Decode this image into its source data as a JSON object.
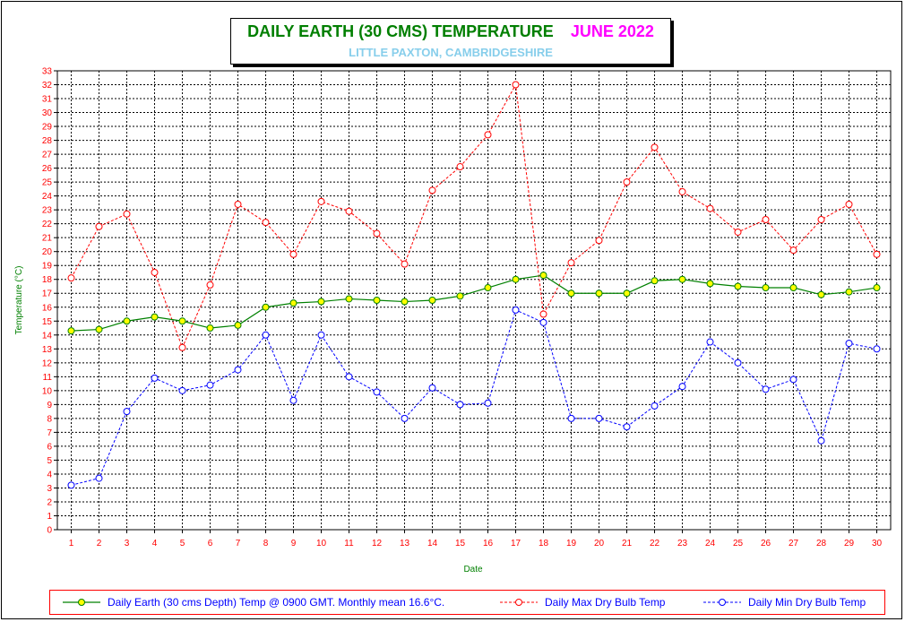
{
  "title": {
    "main": "DAILY EARTH (30 CMS) TEMPERATURE",
    "month": "JUNE 2022",
    "subtitle": "LITTLE PAXTON, CAMBRIDGESHIRE"
  },
  "colors": {
    "earth_line": "#008000",
    "earth_marker": "#ffff00",
    "max_line": "#ff0000",
    "min_line": "#0000ff",
    "grid": "#000000",
    "axis_text": "#ff0000",
    "axis_label": "#008000"
  },
  "legend": {
    "earth_label": "Daily Earth (30 cms Depth) Temp @ 0900 GMT. Monthly mean 16.6°C.",
    "max_label": "Daily Max Dry Bulb Temp",
    "min_label": "Daily Min Dry Bulb Temp"
  },
  "chart_data": {
    "type": "line",
    "xlabel": "Date",
    "ylabel": "Temperature (°C)",
    "ylim": [
      0,
      33
    ],
    "yticks": [
      0,
      1,
      2,
      3,
      4,
      5,
      6,
      7,
      8,
      9,
      10,
      11,
      12,
      13,
      14,
      15,
      16,
      17,
      18,
      19,
      20,
      21,
      22,
      23,
      24,
      25,
      26,
      27,
      28,
      29,
      30,
      31,
      32,
      33
    ],
    "x": [
      1,
      2,
      3,
      4,
      5,
      6,
      7,
      8,
      9,
      10,
      11,
      12,
      13,
      14,
      15,
      16,
      17,
      18,
      19,
      20,
      21,
      22,
      23,
      24,
      25,
      26,
      27,
      28,
      29,
      30
    ],
    "grid": true,
    "legend_position": "bottom",
    "series": [
      {
        "name": "Daily Earth (30 cms Depth) Temp @ 0900 GMT. Monthly mean 16.6°C.",
        "style": "solid",
        "values": [
          14.3,
          14.4,
          15.0,
          15.3,
          15.0,
          14.5,
          14.7,
          16.0,
          16.3,
          16.4,
          16.6,
          16.5,
          16.4,
          16.5,
          16.8,
          17.4,
          18.0,
          18.3,
          17.0,
          17.0,
          17.0,
          17.9,
          18.0,
          17.7,
          17.5,
          17.4,
          17.4,
          16.9,
          17.1,
          17.4
        ]
      },
      {
        "name": "Daily Max Dry Bulb Temp",
        "style": "dashed",
        "values": [
          18.1,
          21.8,
          22.7,
          18.5,
          13.1,
          17.6,
          23.4,
          22.1,
          19.8,
          23.6,
          22.9,
          21.3,
          19.1,
          24.4,
          26.1,
          28.4,
          32.0,
          15.5,
          19.2,
          20.8,
          25.0,
          27.5,
          24.3,
          23.1,
          21.4,
          22.3,
          20.1,
          22.3,
          23.4,
          19.8
        ]
      },
      {
        "name": "Daily Min Dry Bulb Temp",
        "style": "dashed",
        "values": [
          3.2,
          3.7,
          8.5,
          10.9,
          10.0,
          10.4,
          11.5,
          14.0,
          9.3,
          14.0,
          11.0,
          9.9,
          8.0,
          10.2,
          9.0,
          9.1,
          15.8,
          14.9,
          8.0,
          8.0,
          7.4,
          8.9,
          10.3,
          13.5,
          12.0,
          10.1,
          10.8,
          6.4,
          13.4,
          13.0
        ]
      }
    ]
  }
}
